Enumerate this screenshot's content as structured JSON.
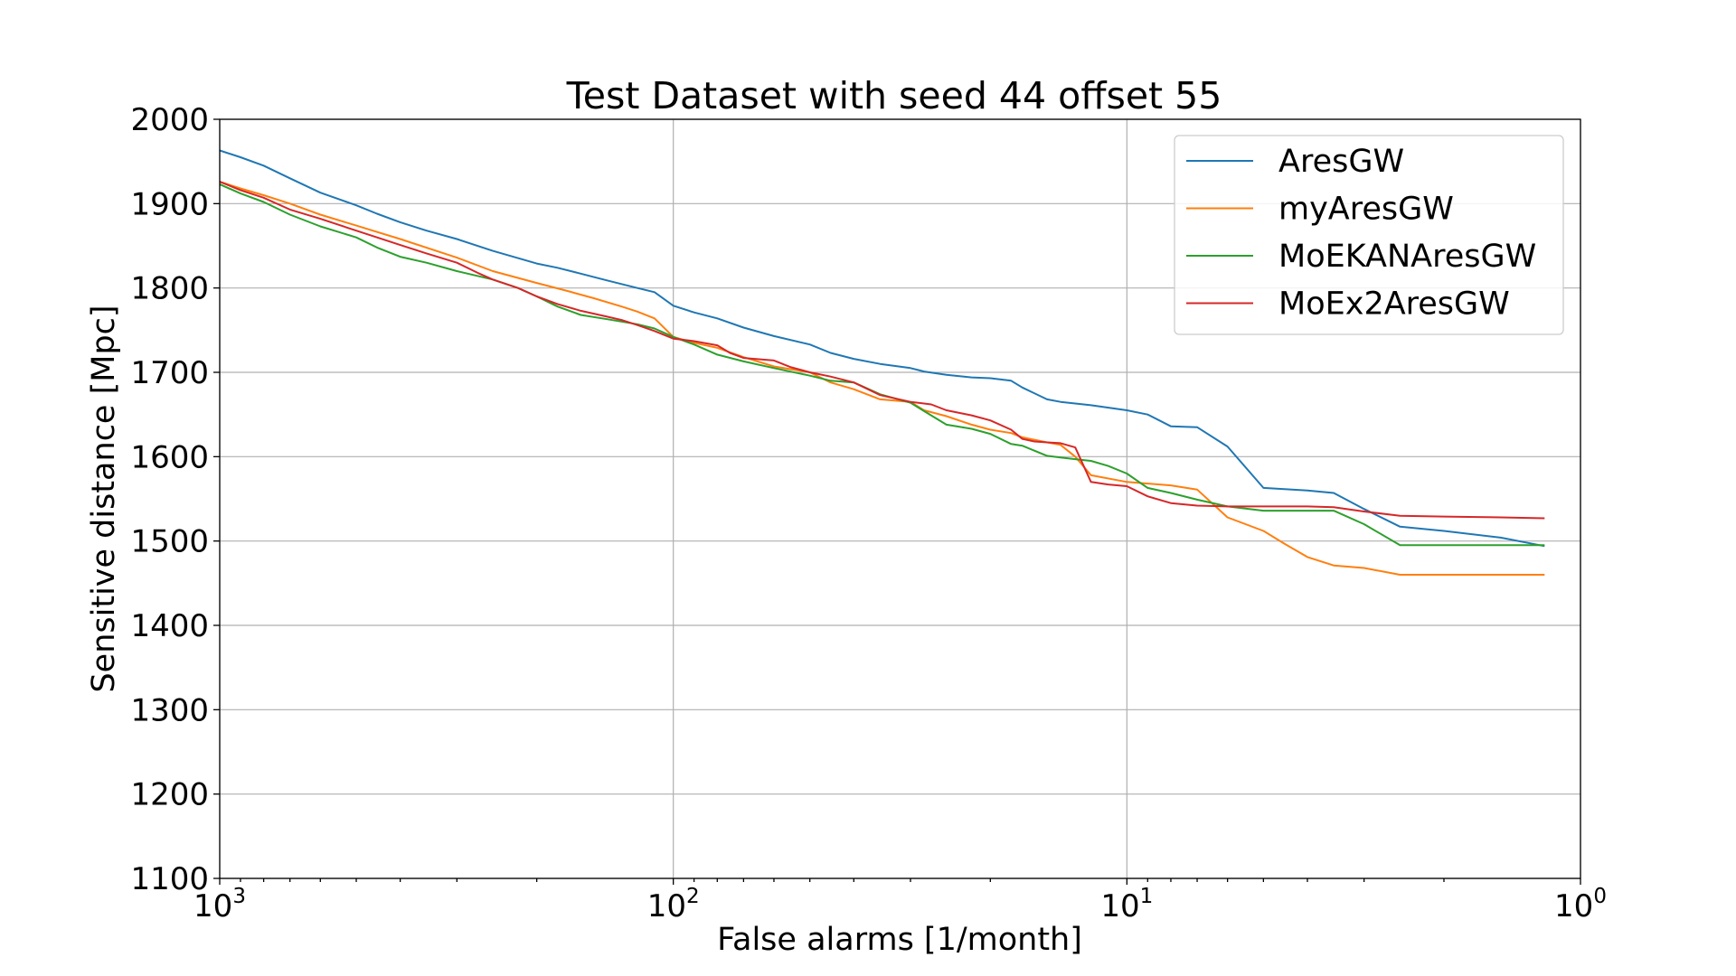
{
  "chart_data": {
    "type": "line",
    "title": "Test Dataset with seed 44 offset 55",
    "xlabel": "False alarms [1/month]",
    "ylabel": "Sensitive distance [Mpc]",
    "x_scale": "log",
    "x_reversed": true,
    "xlim": [
      1000,
      1
    ],
    "ylim": [
      1100,
      2000
    ],
    "grid": true,
    "legend_position": "top-right",
    "x_ticks": [
      {
        "value": 1000,
        "base": "10",
        "exp": "3"
      },
      {
        "value": 100,
        "base": "10",
        "exp": "2"
      },
      {
        "value": 10,
        "base": "10",
        "exp": "1"
      },
      {
        "value": 1,
        "base": "10",
        "exp": "0"
      }
    ],
    "y_ticks": [
      1100,
      1200,
      1300,
      1400,
      1500,
      1600,
      1700,
      1800,
      1900,
      2000
    ],
    "series": [
      {
        "name": "AresGW",
        "color": "#1f77b4",
        "points": [
          [
            1000,
            1963
          ],
          [
            900,
            1955
          ],
          [
            800,
            1945
          ],
          [
            700,
            1930
          ],
          [
            600,
            1913
          ],
          [
            500,
            1898
          ],
          [
            450,
            1888
          ],
          [
            400,
            1878
          ],
          [
            350,
            1868
          ],
          [
            300,
            1858
          ],
          [
            250,
            1844
          ],
          [
            200,
            1829
          ],
          [
            180,
            1824
          ],
          [
            160,
            1817
          ],
          [
            140,
            1809
          ],
          [
            120,
            1800
          ],
          [
            110,
            1795
          ],
          [
            100,
            1779
          ],
          [
            90,
            1771
          ],
          [
            80,
            1764
          ],
          [
            70,
            1753
          ],
          [
            60,
            1743
          ],
          [
            50,
            1733
          ],
          [
            45,
            1723
          ],
          [
            40,
            1716
          ],
          [
            35,
            1710
          ],
          [
            30,
            1705
          ],
          [
            28,
            1701
          ],
          [
            25,
            1697
          ],
          [
            22,
            1694
          ],
          [
            20,
            1693
          ],
          [
            18,
            1690
          ],
          [
            17,
            1682
          ],
          [
            15,
            1668
          ],
          [
            14,
            1665
          ],
          [
            12,
            1661
          ],
          [
            10,
            1655
          ],
          [
            9,
            1650
          ],
          [
            8,
            1636
          ],
          [
            7,
            1635
          ],
          [
            6,
            1612
          ],
          [
            5,
            1563
          ],
          [
            4,
            1560
          ],
          [
            3.5,
            1557
          ],
          [
            3,
            1538
          ],
          [
            2.5,
            1517
          ],
          [
            2,
            1512
          ],
          [
            1.5,
            1504
          ],
          [
            1.2,
            1494
          ]
        ]
      },
      {
        "name": "myAresGW",
        "color": "#ff7f0e",
        "points": [
          [
            1000,
            1926
          ],
          [
            900,
            1918
          ],
          [
            800,
            1910
          ],
          [
            700,
            1900
          ],
          [
            600,
            1887
          ],
          [
            500,
            1874
          ],
          [
            400,
            1858
          ],
          [
            300,
            1836
          ],
          [
            250,
            1820
          ],
          [
            200,
            1806
          ],
          [
            170,
            1796
          ],
          [
            150,
            1788
          ],
          [
            130,
            1778
          ],
          [
            120,
            1772
          ],
          [
            110,
            1764
          ],
          [
            100,
            1742
          ],
          [
            90,
            1735
          ],
          [
            80,
            1729
          ],
          [
            70,
            1718
          ],
          [
            60,
            1707
          ],
          [
            50,
            1700
          ],
          [
            45,
            1688
          ],
          [
            40,
            1680
          ],
          [
            35,
            1668
          ],
          [
            30,
            1665
          ],
          [
            28,
            1655
          ],
          [
            25,
            1648
          ],
          [
            22,
            1638
          ],
          [
            20,
            1632
          ],
          [
            18,
            1628
          ],
          [
            17,
            1623
          ],
          [
            15,
            1617
          ],
          [
            14,
            1614
          ],
          [
            13,
            1600
          ],
          [
            12,
            1578
          ],
          [
            10,
            1570
          ],
          [
            8,
            1566
          ],
          [
            7,
            1561
          ],
          [
            6,
            1528
          ],
          [
            5,
            1512
          ],
          [
            4.5,
            1497
          ],
          [
            4,
            1481
          ],
          [
            3.5,
            1471
          ],
          [
            3,
            1468
          ],
          [
            2.5,
            1460
          ],
          [
            2,
            1460
          ],
          [
            1.5,
            1460
          ],
          [
            1.2,
            1460
          ]
        ]
      },
      {
        "name": "MoEKANAresGW",
        "color": "#2ca02c",
        "points": [
          [
            1000,
            1923
          ],
          [
            900,
            1912
          ],
          [
            800,
            1902
          ],
          [
            700,
            1887
          ],
          [
            600,
            1873
          ],
          [
            500,
            1860
          ],
          [
            450,
            1848
          ],
          [
            400,
            1837
          ],
          [
            350,
            1830
          ],
          [
            300,
            1820
          ],
          [
            250,
            1810
          ],
          [
            220,
            1800
          ],
          [
            200,
            1790
          ],
          [
            180,
            1778
          ],
          [
            160,
            1768
          ],
          [
            140,
            1763
          ],
          [
            120,
            1757
          ],
          [
            110,
            1752
          ],
          [
            100,
            1742
          ],
          [
            90,
            1733
          ],
          [
            80,
            1721
          ],
          [
            70,
            1713
          ],
          [
            60,
            1705
          ],
          [
            50,
            1696
          ],
          [
            45,
            1690
          ],
          [
            40,
            1688
          ],
          [
            35,
            1674
          ],
          [
            30,
            1664
          ],
          [
            28,
            1654
          ],
          [
            25,
            1638
          ],
          [
            22,
            1633
          ],
          [
            20,
            1627
          ],
          [
            18,
            1615
          ],
          [
            17,
            1613
          ],
          [
            15,
            1601
          ],
          [
            14,
            1599
          ],
          [
            13,
            1597
          ],
          [
            12,
            1595
          ],
          [
            11,
            1589
          ],
          [
            10,
            1580
          ],
          [
            9,
            1563
          ],
          [
            8,
            1557
          ],
          [
            7,
            1549
          ],
          [
            6,
            1541
          ],
          [
            5,
            1536
          ],
          [
            4,
            1536
          ],
          [
            3.5,
            1536
          ],
          [
            3,
            1520
          ],
          [
            2.5,
            1495
          ],
          [
            2,
            1495
          ],
          [
            1.5,
            1495
          ],
          [
            1.2,
            1495
          ]
        ]
      },
      {
        "name": "MoEx2AresGW",
        "color": "#d62728",
        "points": [
          [
            1000,
            1926
          ],
          [
            900,
            1916
          ],
          [
            800,
            1907
          ],
          [
            700,
            1893
          ],
          [
            600,
            1882
          ],
          [
            500,
            1868
          ],
          [
            450,
            1860
          ],
          [
            400,
            1851
          ],
          [
            350,
            1841
          ],
          [
            300,
            1830
          ],
          [
            270,
            1818
          ],
          [
            250,
            1810
          ],
          [
            220,
            1800
          ],
          [
            200,
            1790
          ],
          [
            180,
            1781
          ],
          [
            160,
            1773
          ],
          [
            140,
            1766
          ],
          [
            130,
            1762
          ],
          [
            120,
            1756
          ],
          [
            110,
            1749
          ],
          [
            100,
            1740
          ],
          [
            90,
            1737
          ],
          [
            80,
            1732
          ],
          [
            75,
            1723
          ],
          [
            70,
            1717
          ],
          [
            60,
            1714
          ],
          [
            55,
            1706
          ],
          [
            50,
            1700
          ],
          [
            45,
            1695
          ],
          [
            40,
            1688
          ],
          [
            35,
            1673
          ],
          [
            30,
            1665
          ],
          [
            27,
            1662
          ],
          [
            25,
            1655
          ],
          [
            22,
            1649
          ],
          [
            20,
            1643
          ],
          [
            18,
            1632
          ],
          [
            17,
            1621
          ],
          [
            16,
            1618
          ],
          [
            15,
            1617
          ],
          [
            14,
            1616
          ],
          [
            13,
            1611
          ],
          [
            12,
            1570
          ],
          [
            11,
            1567
          ],
          [
            10,
            1565
          ],
          [
            9,
            1553
          ],
          [
            8,
            1545
          ],
          [
            7,
            1542
          ],
          [
            6,
            1541
          ],
          [
            5,
            1541
          ],
          [
            4,
            1541
          ],
          [
            3.5,
            1540
          ],
          [
            3,
            1535
          ],
          [
            2.5,
            1530
          ],
          [
            2,
            1529
          ],
          [
            1.5,
            1528
          ],
          [
            1.2,
            1527
          ]
        ]
      }
    ]
  }
}
